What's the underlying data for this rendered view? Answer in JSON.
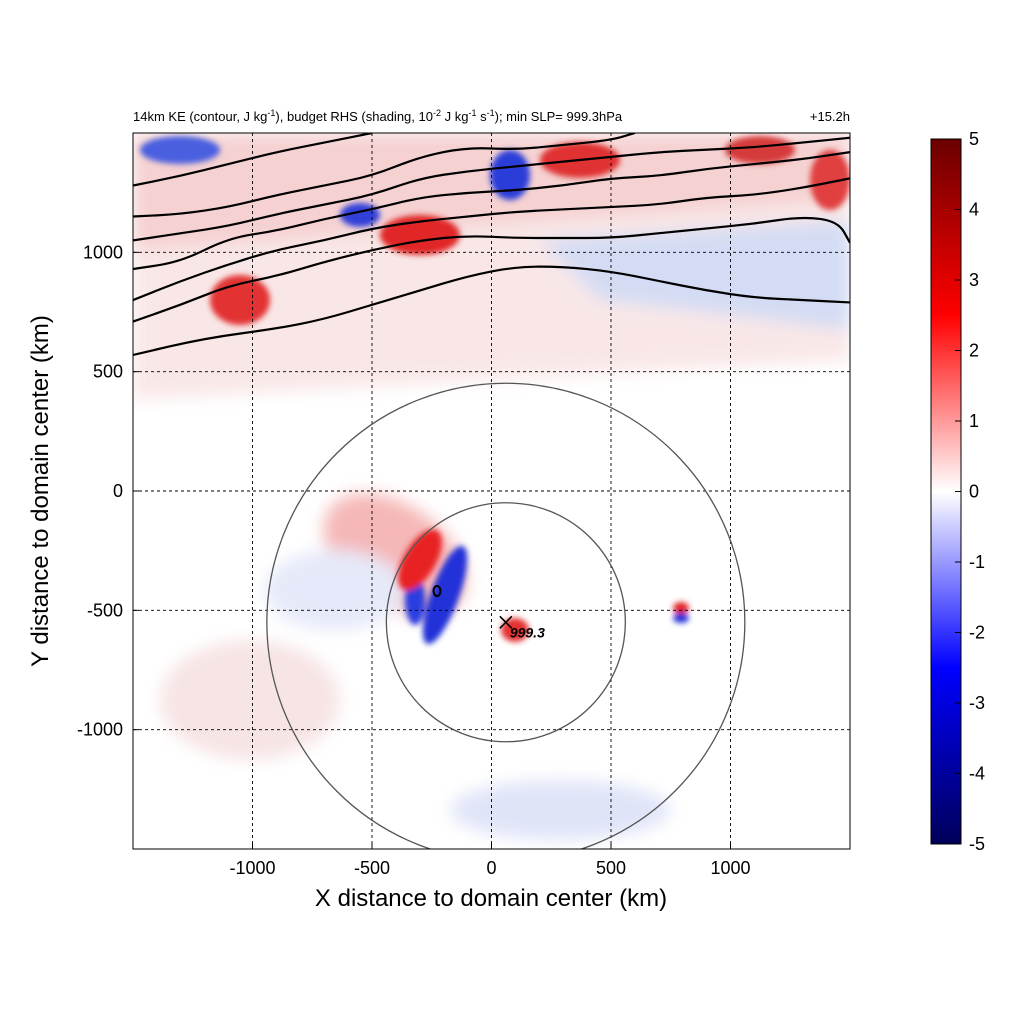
{
  "chart_data": {
    "type": "heatmap",
    "title_left_parts": {
      "a": "14km KE (contour, J kg",
      "a_sup": "-1",
      "b": "), budget RHS (shading, 10",
      "b_sup": "-2",
      "c": " J kg",
      "c_sup": "-1",
      "d": " s",
      "d_sup": "-1",
      "e": "); min SLP= 999.3hPa"
    },
    "title_right": "+15.2h",
    "xlabel": "X distance to domain center (km)",
    "ylabel": "Y distance to domain center (km)",
    "xlim": [
      -1500,
      1500
    ],
    "ylim": [
      -1500,
      1500
    ],
    "xticks": [
      -1000,
      -500,
      0,
      500,
      1000
    ],
    "yticks": [
      -1000,
      -500,
      0,
      500,
      1000
    ],
    "grid": true,
    "colorbar": {
      "min": -5,
      "max": 5,
      "ticks": [
        5,
        4,
        3,
        2,
        1,
        0,
        -1,
        -2,
        -3,
        -4,
        -5
      ],
      "colors": [
        "#00005a",
        "#0000ff",
        "#ffffff",
        "#ff0000",
        "#6a0000"
      ]
    },
    "storm_center": {
      "x": 60,
      "y": -550,
      "label": "999.3"
    },
    "range_rings_km": [
      500,
      1000
    ],
    "ke_contours": [
      {
        "points": [
          [
            -1500,
            570
          ],
          [
            -1200,
            640
          ],
          [
            -900,
            680
          ],
          [
            -700,
            720
          ],
          [
            -500,
            780
          ],
          [
            -300,
            840
          ],
          [
            -100,
            900
          ],
          [
            100,
            940
          ],
          [
            300,
            940
          ],
          [
            500,
            920
          ],
          [
            700,
            880
          ],
          [
            900,
            840
          ],
          [
            1100,
            810
          ],
          [
            1300,
            800
          ],
          [
            1500,
            790
          ]
        ]
      },
      {
        "points": [
          [
            -1500,
            710
          ],
          [
            -1300,
            780
          ],
          [
            -1100,
            860
          ],
          [
            -900,
            900
          ],
          [
            -700,
            960
          ],
          [
            -500,
            1010
          ],
          [
            -300,
            1050
          ],
          [
            -100,
            1070
          ],
          [
            100,
            1060
          ],
          [
            300,
            1060
          ],
          [
            500,
            1060
          ],
          [
            700,
            1080
          ],
          [
            900,
            1100
          ],
          [
            1100,
            1120
          ],
          [
            1300,
            1150
          ],
          [
            1450,
            1130
          ],
          [
            1500,
            1040
          ]
        ]
      },
      {
        "points": [
          [
            -1500,
            800
          ],
          [
            -1300,
            880
          ],
          [
            -1100,
            950
          ],
          [
            -900,
            1010
          ],
          [
            -700,
            1050
          ],
          [
            -500,
            1100
          ],
          [
            -300,
            1130
          ],
          [
            -100,
            1150
          ],
          [
            100,
            1170
          ],
          [
            300,
            1180
          ],
          [
            500,
            1190
          ],
          [
            700,
            1200
          ],
          [
            900,
            1230
          ],
          [
            1100,
            1240
          ],
          [
            1300,
            1270
          ],
          [
            1500,
            1310
          ]
        ]
      },
      {
        "points": [
          [
            -1500,
            930
          ],
          [
            -1300,
            960
          ],
          [
            -1100,
            1060
          ],
          [
            -900,
            1090
          ],
          [
            -700,
            1140
          ],
          [
            -500,
            1180
          ],
          [
            -300,
            1230
          ],
          [
            -100,
            1250
          ],
          [
            100,
            1260
          ],
          [
            300,
            1280
          ],
          [
            500,
            1310
          ],
          [
            700,
            1320
          ],
          [
            900,
            1350
          ],
          [
            1100,
            1370
          ],
          [
            1300,
            1390
          ],
          [
            1500,
            1420
          ]
        ]
      },
      {
        "points": [
          [
            -1500,
            1050
          ],
          [
            -1300,
            1080
          ],
          [
            -1100,
            1110
          ],
          [
            -900,
            1160
          ],
          [
            -700,
            1200
          ],
          [
            -500,
            1240
          ],
          [
            -300,
            1310
          ],
          [
            -100,
            1340
          ],
          [
            100,
            1360
          ],
          [
            300,
            1380
          ],
          [
            500,
            1400
          ],
          [
            700,
            1420
          ],
          [
            900,
            1430
          ],
          [
            1100,
            1440
          ],
          [
            1300,
            1460
          ],
          [
            1500,
            1480
          ]
        ]
      },
      {
        "points": [
          [
            -1500,
            1150
          ],
          [
            -1300,
            1160
          ],
          [
            -1100,
            1190
          ],
          [
            -900,
            1240
          ],
          [
            -700,
            1280
          ],
          [
            -500,
            1320
          ],
          [
            -300,
            1400
          ],
          [
            -100,
            1440
          ],
          [
            100,
            1430
          ],
          [
            300,
            1450
          ],
          [
            500,
            1470
          ],
          [
            600,
            1500
          ]
        ]
      },
      {
        "points": [
          [
            -1500,
            1280
          ],
          [
            -1300,
            1320
          ],
          [
            -1100,
            1370
          ],
          [
            -900,
            1420
          ],
          [
            -700,
            1460
          ],
          [
            -500,
            1500
          ]
        ]
      }
    ]
  }
}
